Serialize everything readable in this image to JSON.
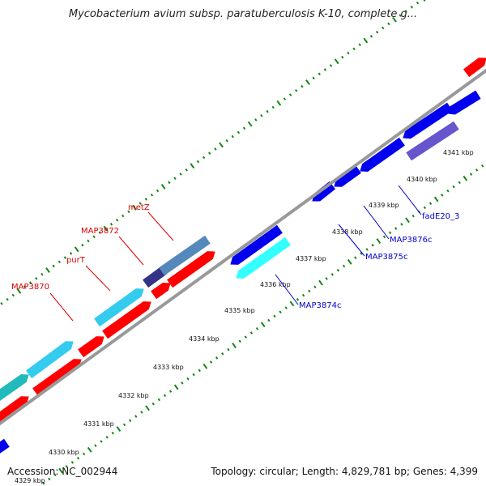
{
  "title": "Mycobacterium avium subsp. paratuberculosis K-10, complete g...",
  "footer": {
    "accession": "Accession: NC_002944",
    "summary": "Topology: circular; Length: 4,829,781 bp; Genes: 4,399"
  },
  "colors": {
    "forward_cds": "#ff0000",
    "reverse_cds": "#0000ee",
    "highlight_cyan": "#33ccee",
    "highlight_aqua": "#33ffff",
    "highlight_steel": "#5588bb",
    "highlight_navy": "#333388",
    "highlight_violet": "#6655cc",
    "highlight_teal": "#22bbbb",
    "backbone": "#999999",
    "tick": "#118811",
    "label_forward": "#dd0000",
    "label_reverse": "#0000cc"
  },
  "scale_labels": [
    "4329 kbp",
    "4330 kbp",
    "4331 kbp",
    "4332 kbp",
    "4333 kbp",
    "4334 kbp",
    "4335 kbp",
    "4336 kbp",
    "4337 kbp",
    "4338 kbp",
    "4339 kbp",
    "4340 kbp",
    "4341 kbp"
  ],
  "gene_labels": [
    {
      "text": "MAP3870",
      "strand": "forward"
    },
    {
      "text": "purT",
      "strand": "forward"
    },
    {
      "text": "MAP3872",
      "strand": "forward"
    },
    {
      "text": "metZ",
      "strand": "forward"
    },
    {
      "text": "MAP3874c",
      "strand": "reverse"
    },
    {
      "text": "MAP3875c",
      "strand": "reverse"
    },
    {
      "text": "MAP3876c",
      "strand": "reverse"
    },
    {
      "text": "fadE20_3",
      "strand": "reverse"
    }
  ]
}
